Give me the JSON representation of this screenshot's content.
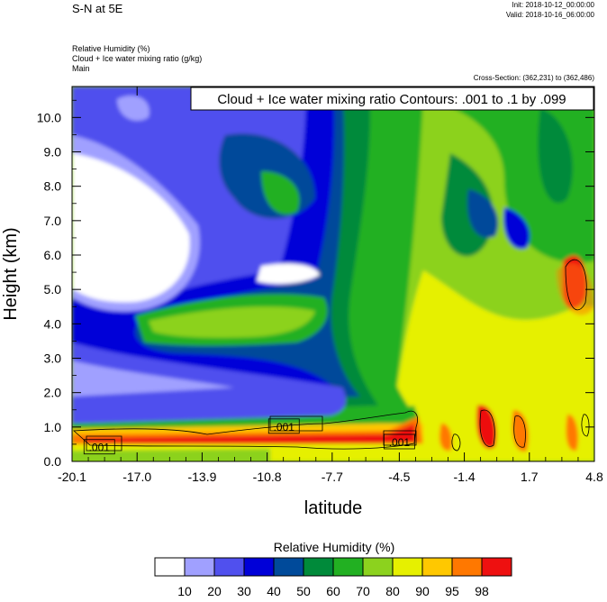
{
  "header": {
    "title": "S-N at 5E",
    "init": "Init: 2018-10-12_00:00:00",
    "valid": "Valid: 2018-10-16_06:00:00",
    "field1": "Relative Humidity   (%)",
    "field2": "Cloud + Ice water mixing ratio   (g/kg)",
    "field3": "Main",
    "cross_section": "Cross-Section: (362,231) to (362,486)"
  },
  "chart_data": {
    "type": "heatmap",
    "title": "Cloud + Ice water mixing ratio Contours: .001 to .1 by .099",
    "xlabel": "latitude",
    "ylabel": "Height (km)",
    "x_ticks": [
      "-20.1",
      "-17.0",
      "-13.9",
      "-10.8",
      "-7.7",
      "-4.5",
      "-1.4",
      "1.7",
      "4.8"
    ],
    "y_ticks": [
      "0.0",
      "1.0",
      "2.0",
      "3.0",
      "4.0",
      "5.0",
      "6.0",
      "7.0",
      "8.0",
      "9.0",
      "10.0"
    ],
    "xlim": [
      -20.1,
      4.8
    ],
    "ylim": [
      0.0,
      10.9
    ],
    "contour_labels": [
      {
        "text": ".001",
        "x": -18.8,
        "y": 0.4
      },
      {
        "text": ".001",
        "x": -10.0,
        "y": 1.0
      },
      {
        "text": ".001",
        "x": -4.5,
        "y": 0.55
      }
    ],
    "colorbar": {
      "title": "Relative Humidity  (%)",
      "levels": [
        "10",
        "20",
        "30",
        "40",
        "50",
        "60",
        "70",
        "80",
        "90",
        "95",
        "98"
      ],
      "colors": [
        "#ffffff",
        "#a0a0ff",
        "#5050ee",
        "#0000d8",
        "#004a9a",
        "#008a3a",
        "#22b022",
        "#8cd21e",
        "#e6f000",
        "#ffc800",
        "#ff7800",
        "#ee1010"
      ]
    }
  }
}
